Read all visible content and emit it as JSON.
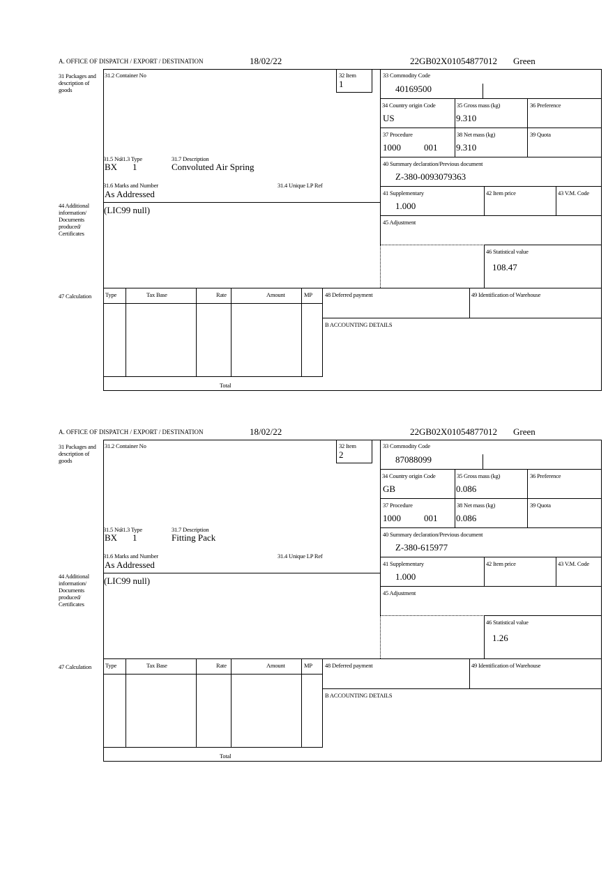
{
  "labels": {
    "office": "A.  OFFICE OF DISPATCH / EXPORT / DESTINATION",
    "box31": "31 Packages and description of goods",
    "container_no": "31.2 Container No",
    "item": "32 Item",
    "commodity_code": "33 Commodity Code",
    "country_origin": "34 Country origin Code",
    "gross_mass": "35 Gross mass (kg)",
    "preference": "36 Preference",
    "procedure": "37 Procedure",
    "net_mass": "38 Net mass (kg)",
    "quota": "39 Quota",
    "summary_decl": "40 Summary declaration/Previous document",
    "supplementary": "41 Supplementary",
    "item_price": "42 Item price",
    "vm_code": "43 V.M. Code",
    "adjustment": "45 Adjustment",
    "statistical_value": "46 Statistical value",
    "pkg_no": "31.5 No",
    "pkg_type": "31.3 Type",
    "pkg_desc": "31.7 Description",
    "marks": "31.6 Marks and Number",
    "unique_lp": "31.4 Unique LP Ref",
    "box44": "44 Additional information/ Documents produced/ Certificates",
    "box47": "47 Calculation",
    "calc_cols": [
      "Type",
      "Tax Base",
      "Rate",
      "Amount",
      "MP"
    ],
    "total": "Total",
    "deferred": "48 Deferred payment",
    "warehouse": "49 Identification of Warehouse",
    "accounting": "B ACCOUNTING DETAILS"
  },
  "forms": [
    {
      "date": "18/02/22",
      "reference": "22GB02X01054877012",
      "route": "Green",
      "item": "1",
      "commodity_code": "40169500",
      "country_origin": "US",
      "gross_mass": "9.310",
      "procedure_a": "1000",
      "procedure_b": "001",
      "net_mass": "9.310",
      "summary_decl": "Z-380-0093079363",
      "supplementary": "1.000",
      "statistical_value": "108.47",
      "pkg_no": "BX",
      "pkg_type": "1",
      "pkg_desc": "Convoluted Air Spring",
      "marks": "As Addressed",
      "additional_info": "(LIC99 null)"
    },
    {
      "date": "18/02/22",
      "reference": "22GB02X01054877012",
      "route": "Green",
      "item": "2",
      "commodity_code": "87088099",
      "country_origin": "GB",
      "gross_mass": "0.086",
      "procedure_a": "1000",
      "procedure_b": "001",
      "net_mass": "0.086",
      "summary_decl": "Z-380-615977",
      "supplementary": "1.000",
      "statistical_value": "1.26",
      "pkg_no": "BX",
      "pkg_type": "1",
      "pkg_desc": "Fitting Pack",
      "marks": "As Addressed",
      "additional_info": "(LIC99 null)"
    }
  ]
}
